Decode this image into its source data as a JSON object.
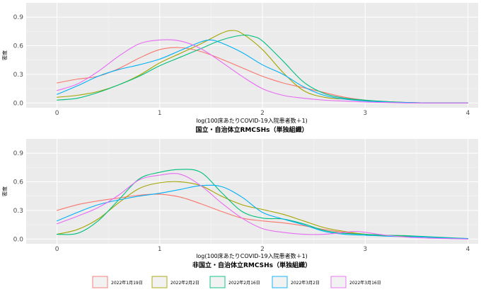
{
  "chart_data": [
    {
      "type": "line",
      "title": "国立・自治体立RMCSHs（単独組織）",
      "xlabel": "log(100床あたりCOVID-19入院患者数＋1)",
      "ylabel": "密度",
      "xlim": [
        -0.3,
        4.1
      ],
      "ylim": [
        -0.05,
        1.05
      ],
      "xticks": [
        0,
        1,
        2,
        3,
        4
      ],
      "yticks": [
        0.0,
        0.3,
        0.6,
        0.9
      ],
      "ytick_labels": [
        "0.0",
        "0.3",
        "0.6",
        "0.9"
      ],
      "grid": true,
      "series": [
        {
          "name": "2022年1月19日",
          "x": [
            0,
            0.2,
            0.4,
            0.6,
            0.8,
            1.0,
            1.2,
            1.4,
            1.6,
            1.8,
            2.0,
            2.2,
            2.4,
            2.6,
            2.8,
            3.0,
            3.2,
            3.4,
            3.6,
            3.8,
            4.0
          ],
          "values": [
            0.21,
            0.25,
            0.28,
            0.36,
            0.47,
            0.56,
            0.58,
            0.54,
            0.46,
            0.37,
            0.28,
            0.21,
            0.16,
            0.11,
            0.06,
            0.03,
            0.01,
            0.005,
            0,
            0,
            0
          ]
        },
        {
          "name": "2022年2月2日",
          "x": [
            0,
            0.2,
            0.4,
            0.6,
            0.8,
            1.0,
            1.2,
            1.4,
            1.6,
            1.7,
            1.8,
            2.0,
            2.2,
            2.4,
            2.6,
            2.8,
            3.0,
            3.2,
            3.4,
            3.6,
            3.8,
            4.0
          ],
          "values": [
            0.06,
            0.08,
            0.12,
            0.19,
            0.29,
            0.42,
            0.52,
            0.62,
            0.73,
            0.76,
            0.73,
            0.56,
            0.32,
            0.13,
            0.06,
            0.04,
            0.025,
            0.015,
            0.005,
            0,
            0,
            0
          ]
        },
        {
          "name": "2022年2月16日",
          "x": [
            0,
            0.2,
            0.4,
            0.6,
            0.8,
            1.0,
            1.2,
            1.4,
            1.6,
            1.8,
            1.9,
            2.0,
            2.2,
            2.4,
            2.6,
            2.8,
            3.0,
            3.2,
            3.4,
            3.6,
            3.8,
            4.0
          ],
          "values": [
            0.03,
            0.05,
            0.11,
            0.19,
            0.28,
            0.39,
            0.48,
            0.57,
            0.66,
            0.71,
            0.7,
            0.65,
            0.44,
            0.22,
            0.1,
            0.05,
            0.03,
            0.015,
            0.005,
            0,
            0,
            0
          ]
        },
        {
          "name": "2022年3月2日",
          "x": [
            0,
            0.2,
            0.4,
            0.6,
            0.8,
            1.0,
            1.2,
            1.4,
            1.5,
            1.6,
            1.8,
            2.0,
            2.2,
            2.4,
            2.6,
            2.8,
            3.0,
            3.2,
            3.4,
            3.6,
            3.8,
            4.0
          ],
          "values": [
            0.09,
            0.18,
            0.28,
            0.35,
            0.4,
            0.46,
            0.55,
            0.64,
            0.66,
            0.63,
            0.53,
            0.4,
            0.3,
            0.17,
            0.08,
            0.04,
            0.02,
            0.01,
            0.005,
            0,
            0,
            0
          ]
        },
        {
          "name": "2022年3月16日",
          "x": [
            0,
            0.2,
            0.4,
            0.6,
            0.8,
            1.0,
            1.2,
            1.4,
            1.6,
            1.8,
            2.0,
            2.2,
            2.4,
            2.6,
            2.8,
            3.0,
            3.2,
            3.4,
            3.6,
            3.8,
            4.0
          ],
          "values": [
            0.13,
            0.2,
            0.33,
            0.49,
            0.62,
            0.66,
            0.65,
            0.57,
            0.43,
            0.28,
            0.15,
            0.08,
            0.05,
            0.03,
            0.02,
            0.01,
            0.005,
            0,
            0,
            0,
            0
          ]
        }
      ]
    },
    {
      "type": "line",
      "title": "非国立・自治体立RMCSHs（単独組織）",
      "xlabel": "log(100床あたりCOVID-19入院患者数＋1)",
      "ylabel": "密度",
      "xlim": [
        -0.3,
        4.1
      ],
      "ylim": [
        -0.05,
        1.05
      ],
      "xticks": [
        0,
        1,
        2,
        3,
        4
      ],
      "yticks": [
        0.0,
        0.3,
        0.6,
        0.9
      ],
      "ytick_labels": [
        "0.0",
        "0.3",
        "0.6",
        "0.9"
      ],
      "grid": true,
      "series": [
        {
          "name": "2022年1月19日",
          "x": [
            0,
            0.2,
            0.4,
            0.6,
            0.8,
            1.0,
            1.2,
            1.4,
            1.6,
            1.8,
            2.0,
            2.2,
            2.4,
            2.6,
            2.8,
            3.0,
            3.2,
            3.4,
            3.6,
            3.8,
            4.0
          ],
          "values": [
            0.3,
            0.36,
            0.4,
            0.43,
            0.46,
            0.47,
            0.44,
            0.37,
            0.29,
            0.22,
            0.19,
            0.17,
            0.14,
            0.1,
            0.07,
            0.05,
            0.035,
            0.03,
            0.02,
            0.01,
            0.005
          ]
        },
        {
          "name": "2022年2月2日",
          "x": [
            0,
            0.2,
            0.4,
            0.6,
            0.8,
            1.0,
            1.2,
            1.4,
            1.6,
            1.8,
            2.0,
            2.2,
            2.4,
            2.6,
            2.8,
            3.0,
            3.2,
            3.4,
            3.6,
            3.8,
            4.0
          ],
          "values": [
            0.05,
            0.1,
            0.21,
            0.38,
            0.53,
            0.59,
            0.6,
            0.56,
            0.45,
            0.36,
            0.31,
            0.26,
            0.19,
            0.12,
            0.08,
            0.05,
            0.035,
            0.03,
            0.02,
            0.01,
            0.005
          ]
        },
        {
          "name": "2022年2月16日",
          "x": [
            0,
            0.2,
            0.4,
            0.6,
            0.8,
            1.0,
            1.2,
            1.4,
            1.6,
            1.8,
            2.0,
            2.2,
            2.4,
            2.6,
            2.8,
            3.0,
            3.2,
            3.4,
            3.6,
            3.8,
            4.0
          ],
          "values": [
            0.05,
            0.06,
            0.19,
            0.41,
            0.63,
            0.7,
            0.73,
            0.7,
            0.49,
            0.29,
            0.22,
            0.21,
            0.16,
            0.09,
            0.06,
            0.05,
            0.04,
            0.035,
            0.025,
            0.015,
            0.005
          ]
        },
        {
          "name": "2022年3月2日",
          "x": [
            0,
            0.2,
            0.4,
            0.6,
            0.8,
            1.0,
            1.2,
            1.4,
            1.6,
            1.8,
            2.0,
            2.2,
            2.4,
            2.6,
            2.8,
            3.0,
            3.2,
            3.4,
            3.6,
            3.8,
            4.0
          ],
          "values": [
            0.19,
            0.28,
            0.36,
            0.41,
            0.45,
            0.48,
            0.52,
            0.56,
            0.55,
            0.44,
            0.28,
            0.21,
            0.15,
            0.08,
            0.05,
            0.04,
            0.03,
            0.025,
            0.02,
            0.01,
            0.005
          ]
        },
        {
          "name": "2022年3月16日",
          "x": [
            0,
            0.2,
            0.4,
            0.6,
            0.8,
            1.0,
            1.2,
            1.4,
            1.6,
            1.8,
            2.0,
            2.2,
            2.4,
            2.6,
            2.8,
            2.9,
            3.0,
            3.2,
            3.4,
            3.6,
            3.8,
            4.0
          ],
          "values": [
            0.16,
            0.24,
            0.33,
            0.46,
            0.62,
            0.67,
            0.68,
            0.56,
            0.38,
            0.22,
            0.11,
            0.07,
            0.05,
            0.05,
            0.07,
            0.08,
            0.07,
            0.04,
            0.02,
            0.01,
            0.005,
            0
          ]
        }
      ]
    }
  ],
  "legend": {
    "placement": "bottom",
    "items": [
      {
        "label": "2022年1月19日",
        "color": "#F8766D"
      },
      {
        "label": "2022年2月2日",
        "color": "#A3A500"
      },
      {
        "label": "2022年2月16日",
        "color": "#00BF7D"
      },
      {
        "label": "2022年3月2日",
        "color": "#00B0F6"
      },
      {
        "label": "2022年3月16日",
        "color": "#E76BF3"
      }
    ]
  },
  "colors": {
    "panel_bg": "#EBEBEB",
    "grid_major": "#FFFFFF",
    "grid_minor": "#F5F5F5"
  }
}
